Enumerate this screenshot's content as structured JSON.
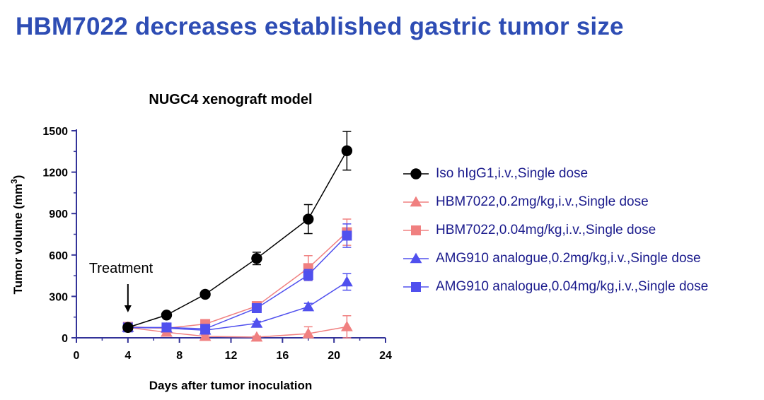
{
  "page": {
    "title": "HBM7022 decreases established gastric tumor size"
  },
  "chart_data": {
    "type": "line",
    "title": "NUGC4 xenograft model",
    "xlabel": "Days after tumor inoculation",
    "ylabel": "Tumor volume (mm3)",
    "xlim": [
      0,
      24
    ],
    "ylim": [
      0,
      1500
    ],
    "xticks": [
      0,
      4,
      8,
      12,
      16,
      20,
      24
    ],
    "yticks": [
      0,
      300,
      600,
      900,
      1200,
      1500
    ],
    "legend_position": "right",
    "annotation": {
      "text": "Treatment",
      "x": 4
    },
    "series": [
      {
        "name": "Iso hIgG1,i.v.,Single  dose",
        "marker": "circle",
        "color": "#000000",
        "x": [
          4,
          7,
          10,
          14,
          18,
          21
        ],
        "y": [
          75,
          165,
          315,
          575,
          860,
          1355
        ],
        "err": [
          20,
          15,
          20,
          45,
          105,
          140
        ]
      },
      {
        "name": "HBM7022,0.2mg/kg,i.v.,Single dose",
        "marker": "triangle",
        "color": "#f08080",
        "x": [
          4,
          7,
          10,
          14,
          18,
          21
        ],
        "y": [
          75,
          40,
          10,
          5,
          30,
          80
        ],
        "err": [
          20,
          15,
          10,
          8,
          50,
          80
        ]
      },
      {
        "name": "HBM7022,0.04mg/kg,i.v.,Single dose",
        "marker": "square",
        "color": "#f08080",
        "x": [
          4,
          7,
          10,
          14,
          18,
          21
        ],
        "y": [
          80,
          70,
          100,
          230,
          505,
          765
        ],
        "err": [
          20,
          15,
          20,
          30,
          90,
          95
        ]
      },
      {
        "name": "AMG910 analogue,0.2mg/kg,i.v.,Single  dose",
        "marker": "triangle",
        "color": "#5050ee",
        "x": [
          4,
          7,
          10,
          14,
          18,
          21
        ],
        "y": [
          75,
          70,
          55,
          105,
          225,
          405
        ],
        "err": [
          15,
          15,
          15,
          15,
          25,
          60
        ]
      },
      {
        "name": "AMG910 analogue,0.04mg/kg,i.v.,Single  dose",
        "marker": "square",
        "color": "#5050ee",
        "x": [
          4,
          7,
          10,
          14,
          18,
          21
        ],
        "y": [
          75,
          75,
          65,
          215,
          455,
          740
        ],
        "err": [
          15,
          15,
          15,
          25,
          40,
          85
        ]
      }
    ]
  }
}
